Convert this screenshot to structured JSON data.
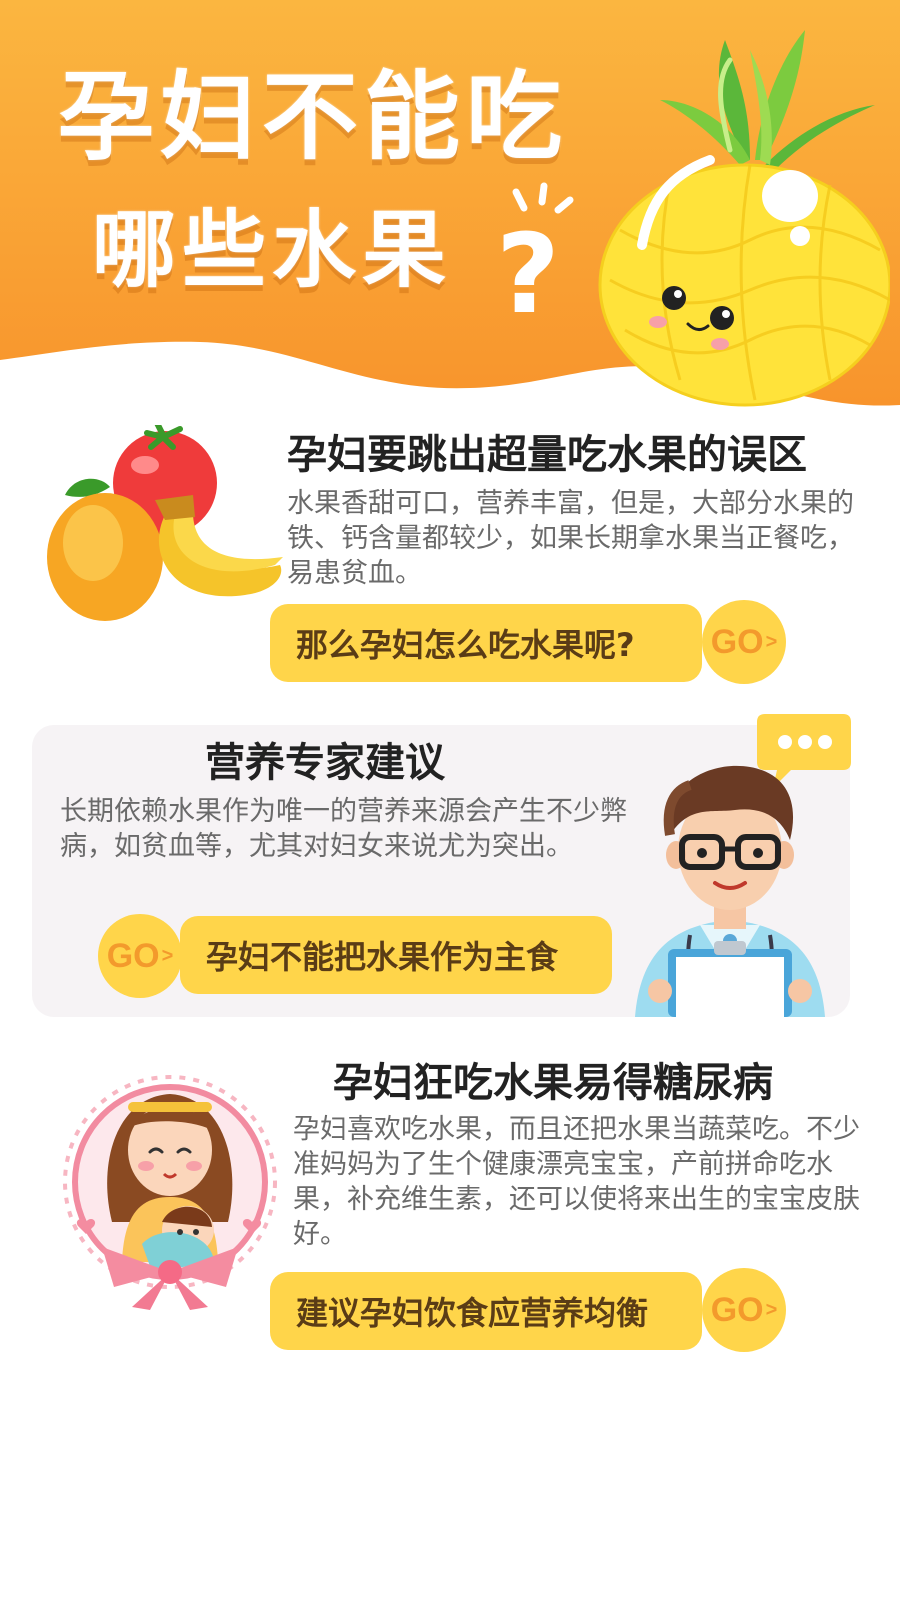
{
  "header": {
    "title_line1": "孕妇不能吃",
    "title_line2": "哪些水果",
    "question_mark": "?"
  },
  "section1": {
    "title": "孕妇要跳出超量吃水果的误区",
    "body": "水果香甜可口，营养丰富，但是，大部分水果的铁、钙含量都较少，如果长期拿水果当正餐吃，易患贫血。",
    "pill_label": "那么孕妇怎么吃水果呢?",
    "go_label": "GO",
    "go_arrow": ">"
  },
  "section2": {
    "title": "营养专家建议",
    "body": "长期依赖水果作为唯一的营养来源会产生不少弊病，如贫血等，尤其对妇女来说尤为突出。",
    "pill_label": "孕妇不能把水果作为主食",
    "go_label": "GO",
    "go_arrow": ">"
  },
  "section3": {
    "title": "孕妇狂吃水果易得糖尿病",
    "body": "孕妇喜欢吃水果，而且还把水果当蔬菜吃。不少准妈妈为了生个健康漂亮宝宝，产前拼命吃水果，补充维生素，还可以使将来出生的宝宝皮肤好。",
    "pill_label": "建议孕妇饮食应营养均衡",
    "go_label": "GO",
    "go_arrow": ">"
  },
  "colors": {
    "header_orange": "#f99a2e",
    "pill_yellow": "#ffd54a",
    "go_text": "#f39a2c",
    "title_text": "#222222",
    "body_text": "#6a6a6a"
  }
}
